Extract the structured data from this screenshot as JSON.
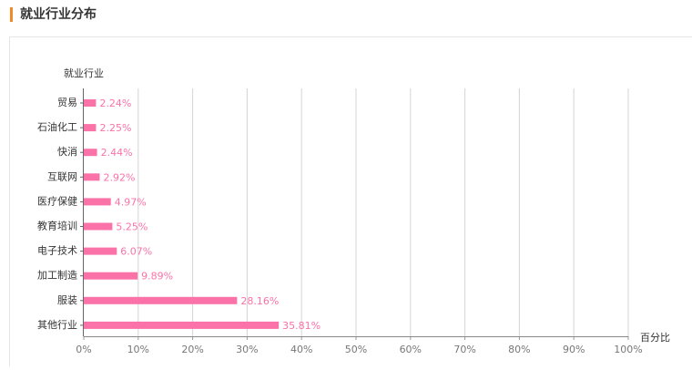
{
  "header": {
    "title": "就业行业分布"
  },
  "chart_data": {
    "type": "bar",
    "orientation": "horizontal",
    "y_label": "就业行业",
    "x_label": "百分比",
    "categories": [
      "贸易",
      "石油化工",
      "快消",
      "互联网",
      "医疗保健",
      "教育培训",
      "电子技术",
      "加工制造",
      "服装",
      "其他行业"
    ],
    "values": [
      2.24,
      2.25,
      2.44,
      2.92,
      4.97,
      5.25,
      6.07,
      9.89,
      28.16,
      35.81
    ],
    "value_labels": [
      "2.24%",
      "2.25%",
      "2.44%",
      "2.92%",
      "4.97%",
      "5.25%",
      "6.07%",
      "9.89%",
      "28.16%",
      "35.81%"
    ],
    "color": "#fb72a8",
    "xlim": [
      0,
      100
    ],
    "xticks": [
      {
        "value": 0,
        "label": "0%"
      },
      {
        "value": 10,
        "label": "10%"
      },
      {
        "value": 20,
        "label": "20%"
      },
      {
        "value": 30,
        "label": "30%"
      },
      {
        "value": 40,
        "label": "40%"
      },
      {
        "value": 50,
        "label": "50%"
      },
      {
        "value": 60,
        "label": "60%"
      },
      {
        "value": 70,
        "label": "70%"
      },
      {
        "value": 80,
        "label": "80%"
      },
      {
        "value": 90,
        "label": "90%"
      },
      {
        "value": 100,
        "label": "100%"
      }
    ],
    "grid": true
  }
}
